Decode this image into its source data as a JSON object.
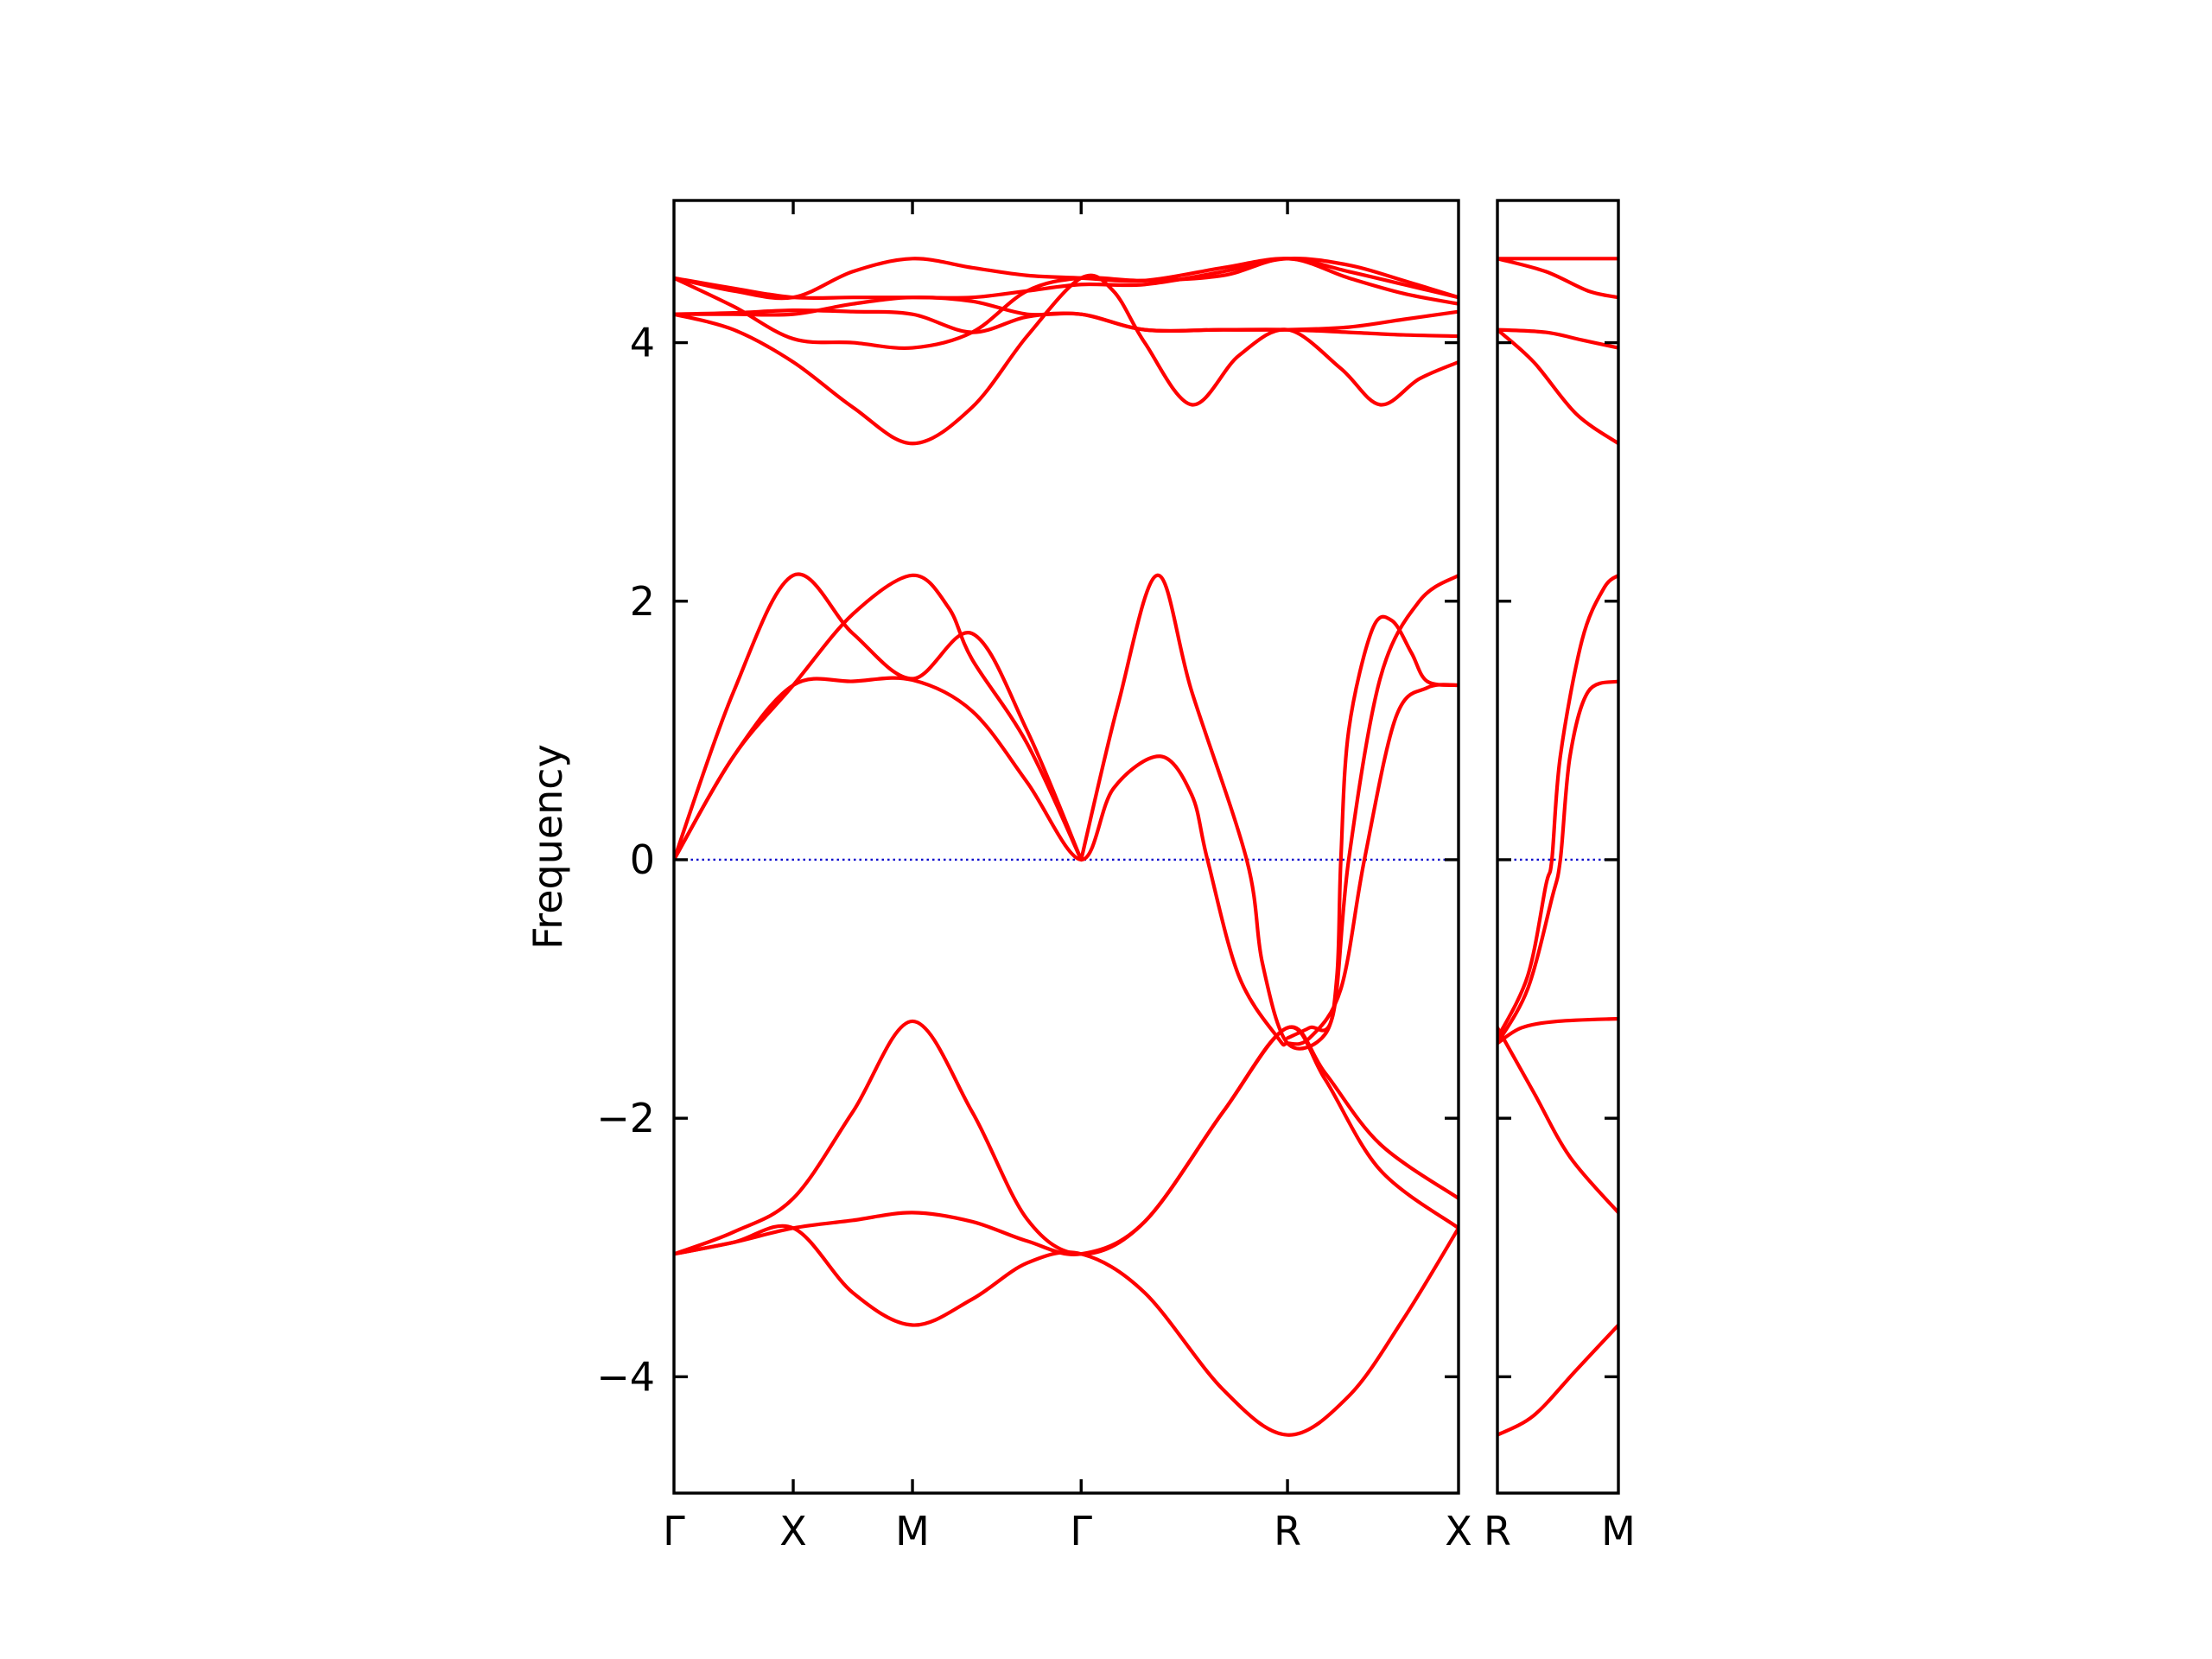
{
  "chart_data": [
    {
      "type": "line",
      "panel": "main",
      "ylabel": "Frequency",
      "xlabel": "",
      "xlim": [
        0,
        1.0
      ],
      "ylim": [
        -4.9,
        5.1
      ],
      "yticks": [
        -4,
        -2,
        0,
        2,
        4
      ],
      "ytick_labels": [
        "−4",
        "−2",
        "0",
        "2",
        "4"
      ],
      "xticks": [
        0,
        0.152,
        0.304,
        0.519,
        0.782,
        1.0
      ],
      "xtick_labels": [
        "Γ",
        "X",
        "M",
        "Γ",
        "R",
        "X"
      ],
      "zero_line": {
        "y": 0,
        "color": "#0000cc",
        "style": "dotted"
      },
      "band_color": "#ff0000",
      "series": [
        {
          "values": [
            [
              0,
              -3.05
            ],
            [
              0.076,
              -2.88
            ],
            [
              0.152,
              -2.62
            ],
            [
              0.228,
              -1.95
            ],
            [
              0.304,
              -1.25
            ],
            [
              0.38,
              -1.95
            ],
            [
              0.45,
              -2.78
            ],
            [
              0.519,
              -3.05
            ],
            [
              0.6,
              -2.8
            ],
            [
              0.7,
              -1.95
            ],
            [
              0.782,
              -1.3
            ],
            [
              0.83,
              -1.65
            ],
            [
              0.9,
              -2.2
            ],
            [
              1.0,
              -2.62
            ]
          ]
        },
        {
          "values": [
            [
              0,
              -3.05
            ],
            [
              0.076,
              -2.96
            ],
            [
              0.152,
              -2.85
            ],
            [
              0.228,
              -2.79
            ],
            [
              0.304,
              -2.73
            ],
            [
              0.38,
              -2.8
            ],
            [
              0.45,
              -2.95
            ],
            [
              0.519,
              -3.05
            ],
            [
              0.6,
              -2.8
            ],
            [
              0.7,
              -1.95
            ],
            [
              0.782,
              -1.3
            ],
            [
              0.83,
              -1.7
            ],
            [
              0.9,
              -2.4
            ],
            [
              1.0,
              -2.85
            ]
          ]
        },
        {
          "values": [
            [
              0,
              -3.05
            ],
            [
              0.076,
              -2.96
            ],
            [
              0.152,
              -2.85
            ],
            [
              0.228,
              -3.35
            ],
            [
              0.304,
              -3.6
            ],
            [
              0.38,
              -3.4
            ],
            [
              0.45,
              -3.12
            ],
            [
              0.519,
              -3.05
            ],
            [
              0.6,
              -3.35
            ],
            [
              0.7,
              -4.1
            ],
            [
              0.782,
              -4.45
            ],
            [
              0.86,
              -4.15
            ],
            [
              0.93,
              -3.55
            ],
            [
              1.0,
              -2.85
            ]
          ]
        },
        {
          "values": [
            [
              0,
              0
            ],
            [
              0.076,
              0.8
            ],
            [
              0.152,
              1.35
            ],
            [
              0.228,
              1.38
            ],
            [
              0.304,
              1.39
            ],
            [
              0.38,
              1.15
            ],
            [
              0.45,
              0.6
            ],
            [
              0.519,
              0
            ],
            [
              0.56,
              0.55
            ],
            [
              0.62,
              0.8
            ],
            [
              0.66,
              0.5
            ],
            [
              0.68,
              0
            ],
            [
              0.72,
              -0.9
            ],
            [
              0.77,
              -1.38
            ],
            [
              0.782,
              -1.42
            ],
            [
              0.81,
              -1.38
            ],
            [
              0.85,
              -1.0
            ],
            [
              0.88,
              0
            ],
            [
              0.92,
              1.1
            ],
            [
              0.96,
              1.33
            ],
            [
              1.0,
              1.35
            ]
          ]
        },
        {
          "values": [
            [
              0,
              0
            ],
            [
              0.076,
              0.8
            ],
            [
              0.152,
              1.35
            ],
            [
              0.228,
              1.9
            ],
            [
              0.304,
              2.2
            ],
            [
              0.35,
              1.95
            ],
            [
              0.38,
              1.55
            ],
            [
              0.45,
              0.9
            ],
            [
              0.519,
              0
            ]
          ]
        },
        {
          "values": [
            [
              0,
              0
            ],
            [
              0.076,
              1.3
            ],
            [
              0.152,
              2.2
            ],
            [
              0.228,
              1.75
            ],
            [
              0.304,
              1.4
            ],
            [
              0.38,
              1.75
            ],
            [
              0.45,
              1.0
            ],
            [
              0.519,
              0
            ]
          ]
        },
        {
          "values": [
            [
              0.519,
              0
            ],
            [
              0.566,
              1.2
            ],
            [
              0.616,
              2.2
            ],
            [
              0.66,
              1.3
            ],
            [
              0.73,
              0
            ],
            [
              0.75,
              -0.8
            ],
            [
              0.782,
              -1.42
            ],
            [
              0.83,
              -1.35
            ],
            [
              0.845,
              -0.9
            ],
            [
              0.85,
              0
            ],
            [
              0.86,
              1.0
            ],
            [
              0.89,
              1.78
            ],
            [
              0.915,
              1.85
            ],
            [
              0.94,
              1.6
            ],
            [
              0.96,
              1.38
            ],
            [
              1.0,
              1.35
            ]
          ]
        },
        {
          "values": [
            [
              0.782,
              -1.38
            ],
            [
              0.81,
              -1.3
            ],
            [
              0.84,
              -1.2
            ],
            [
              0.86,
              0
            ],
            [
              0.9,
              1.4
            ],
            [
              0.95,
              2.0
            ],
            [
              1.0,
              2.2
            ]
          ]
        },
        {
          "values": [
            [
              0,
              4.22
            ],
            [
              0.076,
              4.23
            ],
            [
              0.152,
              4.25
            ],
            [
              0.228,
              4.24
            ],
            [
              0.304,
              4.22
            ],
            [
              0.38,
              4.08
            ],
            [
              0.45,
              4.2
            ],
            [
              0.519,
              4.22
            ],
            [
              0.6,
              4.1
            ],
            [
              0.7,
              4.1
            ],
            [
              0.782,
              4.1
            ],
            [
              0.86,
              4.12
            ],
            [
              0.93,
              4.18
            ],
            [
              1.0,
              4.24
            ]
          ]
        },
        {
          "values": [
            [
              0,
              4.22
            ],
            [
              0.076,
              4.22
            ],
            [
              0.152,
              4.22
            ],
            [
              0.228,
              4.3
            ],
            [
              0.304,
              4.35
            ],
            [
              0.38,
              4.32
            ],
            [
              0.45,
              4.22
            ],
            [
              0.519,
              4.22
            ],
            [
              0.6,
              4.1
            ],
            [
              0.7,
              4.1
            ],
            [
              0.782,
              4.1
            ],
            [
              0.86,
              4.08
            ],
            [
              0.93,
              4.06
            ],
            [
              1.0,
              4.05
            ]
          ]
        },
        {
          "values": [
            [
              0,
              4.5
            ],
            [
              0.076,
              4.28
            ],
            [
              0.152,
              4.03
            ],
            [
              0.228,
              4.0
            ],
            [
              0.304,
              3.96
            ],
            [
              0.38,
              4.08
            ],
            [
              0.45,
              4.4
            ],
            [
              0.519,
              4.5
            ],
            [
              0.6,
              4.48
            ],
            [
              0.7,
              4.52
            ],
            [
              0.782,
              4.65
            ],
            [
              0.86,
              4.5
            ],
            [
              0.93,
              4.38
            ],
            [
              1.0,
              4.3
            ]
          ]
        },
        {
          "values": [
            [
              0,
              4.5
            ],
            [
              0.076,
              4.4
            ],
            [
              0.152,
              4.35
            ],
            [
              0.228,
              4.55
            ],
            [
              0.304,
              4.65
            ],
            [
              0.38,
              4.58
            ],
            [
              0.45,
              4.52
            ],
            [
              0.519,
              4.5
            ],
            [
              0.6,
              4.48
            ],
            [
              0.7,
              4.58
            ],
            [
              0.782,
              4.65
            ],
            [
              0.86,
              4.55
            ],
            [
              0.93,
              4.45
            ],
            [
              1.0,
              4.35
            ]
          ]
        },
        {
          "values": [
            [
              0,
              4.5
            ],
            [
              0.076,
              4.42
            ],
            [
              0.152,
              4.35
            ],
            [
              0.228,
              4.35
            ],
            [
              0.304,
              4.35
            ],
            [
              0.38,
              4.35
            ],
            [
              0.45,
              4.4
            ],
            [
              0.519,
              4.45
            ],
            [
              0.6,
              4.45
            ],
            [
              0.7,
              4.55
            ],
            [
              0.782,
              4.65
            ],
            [
              0.86,
              4.6
            ],
            [
              0.93,
              4.48
            ],
            [
              1.0,
              4.35
            ]
          ]
        },
        {
          "values": [
            [
              0,
              4.22
            ],
            [
              0.076,
              4.1
            ],
            [
              0.152,
              3.85
            ],
            [
              0.228,
              3.5
            ],
            [
              0.304,
              3.22
            ],
            [
              0.38,
              3.5
            ],
            [
              0.45,
              4.05
            ],
            [
              0.519,
              4.5
            ],
            [
              0.56,
              4.4
            ],
            [
              0.6,
              4.0
            ],
            [
              0.66,
              3.52
            ],
            [
              0.72,
              3.9
            ],
            [
              0.782,
              4.1
            ],
            [
              0.85,
              3.8
            ],
            [
              0.9,
              3.52
            ],
            [
              0.95,
              3.72
            ],
            [
              1.0,
              3.85
            ]
          ]
        }
      ]
    },
    {
      "type": "line",
      "panel": "side",
      "xlim": [
        0,
        1.0
      ],
      "ylim": [
        -4.9,
        5.1
      ],
      "xticks": [
        0,
        1.0
      ],
      "xtick_labels": [
        "R",
        "M"
      ],
      "zero_line": {
        "y": 0,
        "color": "#0000cc",
        "style": "dotted"
      },
      "band_color": "#ff0000",
      "series": [
        {
          "values": [
            [
              0,
              -4.45
            ],
            [
              0.3,
              -4.3
            ],
            [
              0.65,
              -3.95
            ],
            [
              1.0,
              -3.6
            ]
          ]
        },
        {
          "values": [
            [
              0,
              -1.3
            ],
            [
              0.3,
              -1.8
            ],
            [
              0.6,
              -2.3
            ],
            [
              1.0,
              -2.73
            ]
          ]
        },
        {
          "values": [
            [
              0,
              -1.42
            ],
            [
              0.2,
              -1.3
            ],
            [
              0.5,
              -1.25
            ],
            [
              1.0,
              -1.23
            ]
          ]
        },
        {
          "values": [
            [
              0,
              -1.42
            ],
            [
              0.25,
              -1.0
            ],
            [
              0.45,
              -0.3
            ],
            [
              0.52,
              0
            ],
            [
              0.6,
              0.8
            ],
            [
              0.75,
              1.3
            ],
            [
              1.0,
              1.38
            ]
          ]
        },
        {
          "values": [
            [
              0,
              -1.38
            ],
            [
              0.25,
              -0.9
            ],
            [
              0.4,
              -0.2
            ],
            [
              0.45,
              0
            ],
            [
              0.52,
              0.8
            ],
            [
              0.7,
              1.7
            ],
            [
              0.88,
              2.1
            ],
            [
              1.0,
              2.2
            ]
          ]
        },
        {
          "values": [
            [
              0,
              4.1
            ],
            [
              0.3,
              3.85
            ],
            [
              0.65,
              3.45
            ],
            [
              1.0,
              3.22
            ]
          ]
        },
        {
          "values": [
            [
              0,
              4.1
            ],
            [
              0.4,
              4.08
            ],
            [
              0.7,
              4.02
            ],
            [
              1.0,
              3.96
            ]
          ]
        },
        {
          "values": [
            [
              0,
              4.65
            ],
            [
              0.4,
              4.55
            ],
            [
              0.75,
              4.4
            ],
            [
              1.0,
              4.35
            ]
          ]
        },
        {
          "values": [
            [
              0,
              4.65
            ],
            [
              0.5,
              4.65
            ],
            [
              1.0,
              4.65
            ]
          ]
        }
      ]
    }
  ]
}
